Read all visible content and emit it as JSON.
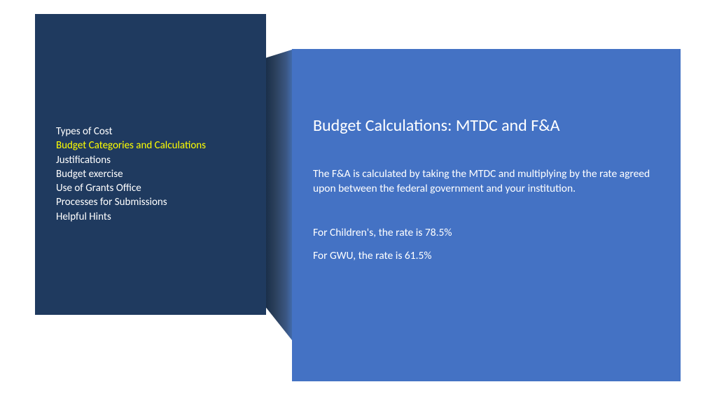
{
  "colors": {
    "left_panel_bg": "#1f3a5f",
    "right_panel_bg": "#4472c4",
    "text_white": "#ffffff",
    "highlight": "#ffff00",
    "page_bg": "#ffffff"
  },
  "nav": {
    "items": [
      {
        "label": "Types of Cost",
        "highlighted": false
      },
      {
        "label": "Budget Categories and Calculations",
        "highlighted": true
      },
      {
        "label": "Justifications",
        "highlighted": false
      },
      {
        "label": "Budget exercise",
        "highlighted": false
      },
      {
        "label": "Use of Grants Office",
        "highlighted": false
      },
      {
        "label": "Processes for Submissions",
        "highlighted": false
      },
      {
        "label": "Helpful Hints",
        "highlighted": false
      }
    ]
  },
  "content": {
    "title": "Budget Calculations: MTDC and F&A",
    "paragraph": "The F&A is calculated by taking the MTDC and multiplying by the rate agreed upon between the federal government and your institution.",
    "rate1": "For Children's, the rate is 78.5%",
    "rate2": "For GWU, the rate is 61.5%"
  }
}
